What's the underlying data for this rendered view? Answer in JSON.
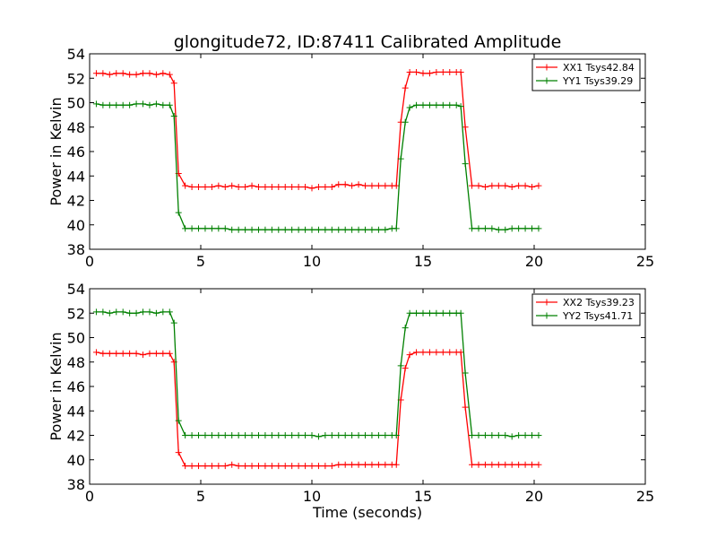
{
  "figure": {
    "title": "glongitude72, ID:87411 Calibrated Amplitude"
  },
  "chart_data": [
    {
      "type": "line",
      "title": "glongitude72, ID:87411 Calibrated Amplitude",
      "xlabel": "",
      "ylabel": "Power in Kelvin",
      "xlim": [
        0,
        25
      ],
      "ylim": [
        38,
        54
      ],
      "xticks": [
        0,
        5,
        10,
        15,
        20,
        25
      ],
      "yticks": [
        38,
        40,
        42,
        44,
        46,
        48,
        50,
        52,
        54
      ],
      "grid": false,
      "legend": "top-right",
      "x": [
        0.3,
        0.6,
        0.9,
        1.2,
        1.5,
        1.8,
        2.1,
        2.4,
        2.7,
        3.0,
        3.3,
        3.6,
        3.8,
        4.0,
        4.3,
        4.6,
        4.9,
        5.2,
        5.5,
        5.8,
        6.1,
        6.4,
        6.7,
        7.0,
        7.3,
        7.6,
        7.9,
        8.2,
        8.5,
        8.8,
        9.1,
        9.4,
        9.7,
        10.0,
        10.3,
        10.6,
        10.9,
        11.2,
        11.5,
        11.8,
        12.1,
        12.4,
        12.7,
        13.0,
        13.3,
        13.6,
        13.8,
        14.0,
        14.2,
        14.4,
        14.7,
        15.0,
        15.3,
        15.6,
        15.9,
        16.2,
        16.5,
        16.7,
        16.9,
        17.2,
        17.5,
        17.8,
        18.1,
        18.4,
        18.7,
        19.0,
        19.3,
        19.6,
        19.9,
        20.2
      ],
      "series": [
        {
          "name": "XX1 Tsys42.84",
          "color": "#ff0000",
          "values": [
            52.4,
            52.4,
            52.3,
            52.4,
            52.4,
            52.3,
            52.3,
            52.4,
            52.4,
            52.3,
            52.4,
            52.3,
            51.6,
            44.2,
            43.2,
            43.1,
            43.1,
            43.1,
            43.1,
            43.2,
            43.1,
            43.2,
            43.1,
            43.1,
            43.2,
            43.1,
            43.1,
            43.1,
            43.1,
            43.1,
            43.1,
            43.1,
            43.1,
            43.0,
            43.1,
            43.1,
            43.1,
            43.3,
            43.3,
            43.2,
            43.3,
            43.2,
            43.2,
            43.2,
            43.2,
            43.2,
            43.2,
            48.4,
            51.2,
            52.5,
            52.5,
            52.4,
            52.4,
            52.5,
            52.5,
            52.5,
            52.5,
            52.5,
            48.0,
            43.2,
            43.2,
            43.1,
            43.2,
            43.2,
            43.2,
            43.1,
            43.2,
            43.2,
            43.1,
            43.2
          ]
        },
        {
          "name": "YY1 Tsys39.29",
          "color": "#008000",
          "values": [
            49.9,
            49.8,
            49.8,
            49.8,
            49.8,
            49.8,
            49.9,
            49.9,
            49.8,
            49.9,
            49.8,
            49.8,
            48.9,
            41.0,
            39.7,
            39.7,
            39.7,
            39.7,
            39.7,
            39.7,
            39.7,
            39.6,
            39.6,
            39.6,
            39.6,
            39.6,
            39.6,
            39.6,
            39.6,
            39.6,
            39.6,
            39.6,
            39.6,
            39.6,
            39.6,
            39.6,
            39.6,
            39.6,
            39.6,
            39.6,
            39.6,
            39.6,
            39.6,
            39.6,
            39.6,
            39.7,
            39.7,
            45.4,
            48.4,
            49.6,
            49.8,
            49.8,
            49.8,
            49.8,
            49.8,
            49.8,
            49.8,
            49.7,
            45.0,
            39.7,
            39.7,
            39.7,
            39.7,
            39.6,
            39.6,
            39.7,
            39.7,
            39.7,
            39.7,
            39.7
          ]
        }
      ]
    },
    {
      "type": "line",
      "title": "",
      "xlabel": "Time (seconds)",
      "ylabel": "Power in Kelvin",
      "xlim": [
        0,
        25
      ],
      "ylim": [
        38,
        54
      ],
      "xticks": [
        0,
        5,
        10,
        15,
        20,
        25
      ],
      "yticks": [
        38,
        40,
        42,
        44,
        46,
        48,
        50,
        52,
        54
      ],
      "grid": false,
      "legend": "top-right",
      "x": [
        0.3,
        0.6,
        0.9,
        1.2,
        1.5,
        1.8,
        2.1,
        2.4,
        2.7,
        3.0,
        3.3,
        3.6,
        3.8,
        4.0,
        4.3,
        4.6,
        4.9,
        5.2,
        5.5,
        5.8,
        6.1,
        6.4,
        6.7,
        7.0,
        7.3,
        7.6,
        7.9,
        8.2,
        8.5,
        8.8,
        9.1,
        9.4,
        9.7,
        10.0,
        10.3,
        10.6,
        10.9,
        11.2,
        11.5,
        11.8,
        12.1,
        12.4,
        12.7,
        13.0,
        13.3,
        13.6,
        13.8,
        14.0,
        14.2,
        14.4,
        14.7,
        15.0,
        15.3,
        15.6,
        15.9,
        16.2,
        16.5,
        16.7,
        16.9,
        17.2,
        17.5,
        17.8,
        18.1,
        18.4,
        18.7,
        19.0,
        19.3,
        19.6,
        19.9,
        20.2
      ],
      "series": [
        {
          "name": "XX2 Tsys39.23",
          "color": "#ff0000",
          "values": [
            48.8,
            48.7,
            48.7,
            48.7,
            48.7,
            48.7,
            48.7,
            48.6,
            48.7,
            48.7,
            48.7,
            48.7,
            48.0,
            40.6,
            39.5,
            39.5,
            39.5,
            39.5,
            39.5,
            39.5,
            39.5,
            39.6,
            39.5,
            39.5,
            39.5,
            39.5,
            39.5,
            39.5,
            39.5,
            39.5,
            39.5,
            39.5,
            39.5,
            39.5,
            39.5,
            39.5,
            39.5,
            39.6,
            39.6,
            39.6,
            39.6,
            39.6,
            39.6,
            39.6,
            39.6,
            39.6,
            39.6,
            44.9,
            47.5,
            48.6,
            48.8,
            48.8,
            48.8,
            48.8,
            48.8,
            48.8,
            48.8,
            48.8,
            44.3,
            39.6,
            39.6,
            39.6,
            39.6,
            39.6,
            39.6,
            39.6,
            39.6,
            39.6,
            39.6,
            39.6
          ]
        },
        {
          "name": "YY2 Tsys41.71",
          "color": "#008000",
          "values": [
            52.1,
            52.1,
            52.0,
            52.1,
            52.1,
            52.0,
            52.0,
            52.1,
            52.1,
            52.0,
            52.1,
            52.1,
            51.2,
            43.2,
            42.0,
            42.0,
            42.0,
            42.0,
            42.0,
            42.0,
            42.0,
            42.0,
            42.0,
            42.0,
            42.0,
            42.0,
            42.0,
            42.0,
            42.0,
            42.0,
            42.0,
            42.0,
            42.0,
            42.0,
            41.9,
            42.0,
            42.0,
            42.0,
            42.0,
            42.0,
            42.0,
            42.0,
            42.0,
            42.0,
            42.0,
            42.0,
            42.0,
            47.7,
            50.8,
            52.0,
            52.0,
            52.0,
            52.0,
            52.0,
            52.0,
            52.0,
            52.0,
            52.0,
            47.1,
            42.0,
            42.0,
            42.0,
            42.0,
            42.0,
            42.0,
            41.9,
            42.0,
            42.0,
            42.0,
            42.0
          ]
        }
      ]
    }
  ]
}
